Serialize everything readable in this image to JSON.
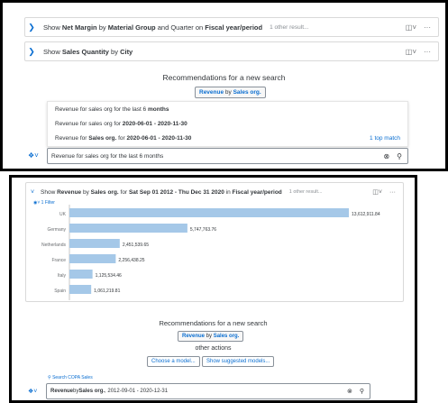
{
  "top": {
    "cards": [
      {
        "prefix": "Show ",
        "measure": "Net Margin",
        "mid1": " by ",
        "dim1": "Material Group",
        "mid2": " and Quarter on ",
        "dim2": "Fiscal year/period",
        "more": "1 other result..."
      },
      {
        "prefix": "Show ",
        "measure": "Sales Quantity",
        "mid1": " by ",
        "dim1": "City"
      }
    ],
    "rec_title": "Recommendations for a new search",
    "rec_chip": {
      "measure": "Revenue",
      "by": " by ",
      "dim": "Sales org."
    },
    "dropdown": [
      {
        "a": "Revenue for sales org for the last 6 ",
        "b": "months"
      },
      {
        "a": "Revenue for sales org for ",
        "b": "2020-06-01 - 2020-11-30"
      },
      {
        "a": "Revenue for ",
        "b": "Sales org.",
        "c": " for ",
        "d": "2020-06-01 - 2020-11-30",
        "right": "1 top match"
      }
    ],
    "search_value": "Revenue for sales org for the last 6 months"
  },
  "bottom": {
    "card": {
      "prefix": "Show ",
      "measure": "Revenue",
      "mid1": " by ",
      "dim1": "Sales org.",
      "mid2": " for ",
      "period": "Sat Sep 01 2012 - Thu Dec 31 2020",
      "mid3": " in ",
      "dim2": "Fiscal year/period",
      "more": "1 other result..."
    },
    "filter_label": "1 Filter",
    "rec_title": "Recommendations for a new search",
    "rec_chip": {
      "measure": "Revenue",
      "by": " by ",
      "dim": "Sales org."
    },
    "other_actions": "other actions",
    "btn_choose": "Choose a model...",
    "btn_suggested": "Show suggested models...",
    "copa": "Search COPA Sales",
    "search": {
      "measure": "Revenue",
      "by": " by ",
      "dim": "Sales org.",
      "rest": ", 2012-09-01 - 2020-12-31"
    }
  },
  "colors": {
    "accent": "#0a6ed1",
    "bar": "#a5c8e8",
    "text": "#32363a"
  },
  "chart_data": {
    "type": "bar",
    "orientation": "horizontal",
    "categories": [
      "UK",
      "Germany",
      "Netherlands",
      "France",
      "Italy",
      "Spain"
    ],
    "values": [
      13612911.84,
      5747763.76,
      2451539.65,
      2256438.25,
      1125534.46,
      1061219.81
    ],
    "value_labels": [
      "13,612,911.84",
      "5,747,763.76",
      "2,451,539.65",
      "2,256,438.25",
      "1,125,534.46",
      "1,061,219.81"
    ],
    "title": "",
    "xlabel": "",
    "ylabel": ""
  }
}
